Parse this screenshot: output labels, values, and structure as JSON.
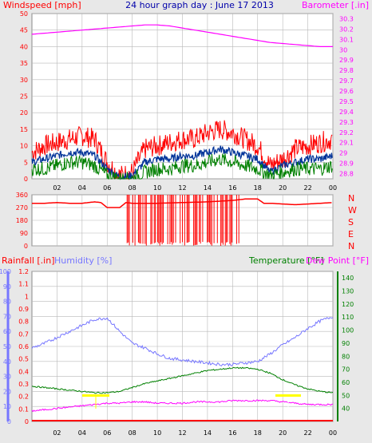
{
  "title": "24 hour graph day : June 17 2013",
  "colors": {
    "background": "#e8e8e8",
    "plot_bg": "#ffffff",
    "grid": "#b8b8b8",
    "wind_gust": "#ff0000",
    "wind_avg": "#003399",
    "wind_low": "#008000",
    "barometer": "#ff00ff",
    "direction": "#ff0000",
    "rain": "#ff0000",
    "humidity": "#7777ff",
    "temperature": "#008000",
    "dewpoint": "#ff00ff",
    "annotation": "#ffff00"
  },
  "chart_data": [
    {
      "type": "line",
      "panel": "wind_barometer",
      "title": "24 hour graph day : June 17 2013",
      "ylabel": "Windspeed [mph]",
      "y2label": "Barometer [.in]",
      "xticks": [
        "02",
        "04",
        "06",
        "08",
        "10",
        "12",
        "14",
        "16",
        "18",
        "20",
        "22",
        "00"
      ],
      "yticks": [
        "0",
        "5",
        "10",
        "15",
        "20",
        "25",
        "30",
        "35",
        "40",
        "45",
        "50"
      ],
      "y2ticks": [
        "28.8",
        "28.9",
        "29",
        "29.1",
        "29.2",
        "29.3",
        "29.4",
        "29.5",
        "29.6",
        "29.7",
        "29.8",
        "29.9",
        "30",
        "30.1",
        "30.2",
        "30.3"
      ],
      "ylim": [
        0,
        50
      ],
      "y2lim": [
        28.75,
        30.35
      ],
      "xlim": [
        0,
        24
      ],
      "grid": true,
      "x": [
        0,
        1,
        2,
        3,
        4,
        5,
        6,
        7,
        8,
        9,
        10,
        11,
        12,
        13,
        14,
        15,
        16,
        17,
        18,
        19,
        20,
        21,
        22,
        23,
        24
      ],
      "series": [
        {
          "name": "gust",
          "values": [
            8,
            10,
            11,
            12,
            13,
            12,
            5,
            1,
            2,
            9,
            10,
            11,
            12,
            12,
            14,
            15,
            14,
            12,
            10,
            4,
            6,
            9,
            10,
            11,
            12
          ]
        },
        {
          "name": "average",
          "values": [
            5,
            6,
            7,
            8,
            8,
            7,
            3,
            0.5,
            1,
            5,
            6,
            6,
            7,
            7,
            8,
            9,
            8,
            7,
            6,
            2,
            4,
            5,
            6,
            6,
            7
          ]
        },
        {
          "name": "low",
          "values": [
            3,
            3,
            4,
            5,
            5,
            4,
            1,
            0,
            0,
            2,
            3,
            3,
            4,
            4,
            5,
            6,
            5,
            4,
            3,
            1,
            2,
            3,
            3,
            3,
            4
          ]
        },
        {
          "name": "barometer",
          "axis": "right",
          "values": [
            30.15,
            30.16,
            30.17,
            30.18,
            30.19,
            30.2,
            30.21,
            30.22,
            30.23,
            30.24,
            30.24,
            30.23,
            30.21,
            30.19,
            30.17,
            30.15,
            30.13,
            30.11,
            30.09,
            30.07,
            30.06,
            30.05,
            30.04,
            30.03,
            30.03
          ]
        }
      ]
    },
    {
      "type": "line",
      "panel": "wind_direction",
      "yticks": [
        "360",
        "270",
        "180",
        "90",
        "0"
      ],
      "compass": [
        "N",
        "W",
        "S",
        "E",
        "N"
      ],
      "ylim": [
        0,
        360
      ],
      "xlim": [
        0,
        24
      ],
      "grid": true,
      "x": [
        0,
        1,
        2,
        3,
        4,
        5,
        5.5,
        6,
        7,
        7.5,
        8,
        10,
        12,
        14,
        16,
        17,
        18,
        18.5,
        19,
        20,
        21,
        22,
        23,
        24
      ],
      "series": [
        {
          "name": "direction",
          "values": [
            300,
            300,
            305,
            300,
            300,
            310,
            305,
            270,
            270,
            305,
            300,
            300,
            305,
            310,
            320,
            330,
            330,
            300,
            300,
            295,
            290,
            295,
            300,
            305
          ]
        }
      ],
      "scatter_spikes": {
        "from": 7.5,
        "to": 16.5,
        "low": 0,
        "high": 360
      }
    },
    {
      "type": "line",
      "panel": "rain_humidity_temp",
      "ylabel": "Rainfall [.in]",
      "ylabel2": "Humidity [%]",
      "y2label": "Temperature [°F]",
      "y3label": "Dew Point [°F]",
      "xticks": [
        "02",
        "04",
        "06",
        "08",
        "10",
        "12",
        "14",
        "16",
        "18",
        "20",
        "22",
        "00"
      ],
      "rain_ticks": [
        "0",
        "0.1",
        "0.2",
        "0.3",
        "0.4",
        "0.5",
        "0.6",
        "0.7",
        "0.8",
        "0.9",
        "1",
        "1.1",
        "1.2"
      ],
      "humidity_ticks": [
        "0",
        "10",
        "20",
        "30",
        "40",
        "50",
        "60",
        "70",
        "80",
        "90",
        "100"
      ],
      "temp_ticks": [
        "40",
        "50",
        "60",
        "70",
        "80",
        "90",
        "100",
        "110",
        "120",
        "130",
        "140"
      ],
      "rain_lim": [
        0,
        1.2
      ],
      "humidity_lim": [
        0,
        100
      ],
      "temp_lim": [
        30,
        145
      ],
      "xlim": [
        0,
        24
      ],
      "grid": true,
      "x": [
        0,
        1,
        2,
        3,
        4,
        5,
        6,
        7,
        8,
        9,
        10,
        11,
        12,
        13,
        14,
        15,
        16,
        17,
        18,
        19,
        20,
        21,
        22,
        23,
        24
      ],
      "series": [
        {
          "name": "humidity",
          "values": [
            49,
            52,
            56,
            60,
            64,
            68,
            69,
            60,
            52,
            49,
            45,
            42,
            41,
            40,
            39,
            38,
            38,
            39,
            40,
            45,
            51,
            56,
            62,
            67,
            70
          ]
        },
        {
          "name": "temperature",
          "values": [
            57,
            56,
            55,
            54,
            53,
            52,
            52,
            53,
            56,
            59,
            61,
            63,
            65,
            67,
            69,
            70,
            71,
            71,
            70,
            67,
            62,
            58,
            55,
            53,
            52
          ]
        },
        {
          "name": "dewpoint",
          "values": [
            38,
            39,
            40,
            41,
            42,
            43,
            44,
            44,
            45,
            45,
            44,
            44,
            44,
            45,
            45,
            45,
            46,
            46,
            46,
            46,
            45,
            44,
            43,
            43,
            43
          ]
        },
        {
          "name": "rainfall",
          "values": [
            0,
            0,
            0,
            0,
            0,
            0,
            0,
            0,
            0,
            0,
            0,
            0,
            0,
            0,
            0,
            0,
            0,
            0,
            0,
            0,
            0,
            0,
            0,
            0,
            0
          ]
        }
      ]
    }
  ]
}
